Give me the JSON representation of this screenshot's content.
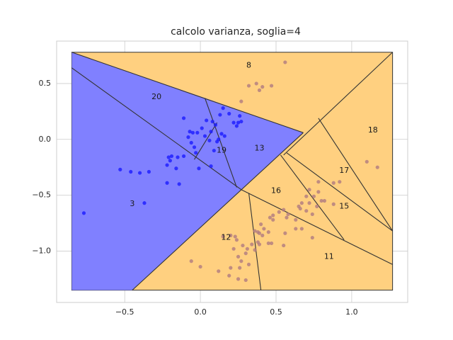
{
  "chart_data": {
    "type": "scatter",
    "title": "calcolo varianza, soglia=4",
    "xlabel": "",
    "ylabel": "",
    "xlim": [
      -0.95,
      1.37
    ],
    "ylim": [
      -1.46,
      0.88
    ],
    "xticks": [
      -0.5,
      0.0,
      0.5,
      1.0
    ],
    "xtick_labels": [
      "−0.5",
      "0.0",
      "0.5",
      "1.0"
    ],
    "yticks": [
      0.5,
      0.0,
      -0.5,
      -1.0
    ],
    "ytick_labels": [
      "0.5",
      "0.0",
      "−0.5",
      "−1.0"
    ],
    "grid": true,
    "colors": {
      "class_a_region": "#8080ff",
      "class_b_region": "#ffd080",
      "class_a_point": "#1a1aff",
      "class_b_point": "#b07a80",
      "line": "#333333",
      "grid": "#cccccc"
    },
    "bounds": {
      "x": [
        -0.85,
        1.27
      ],
      "y": [
        -1.35,
        0.78
      ]
    },
    "regions_a": [
      [
        [
          -0.85,
          0.78
        ],
        [
          -0.85,
          -1.35
        ],
        [
          -0.45,
          -1.35
        ],
        [
          0.27,
          -0.45
        ],
        [
          0.68,
          0.06
        ],
        [
          0.03,
          0.37
        ]
      ]
    ],
    "lines": [
      [
        [
          -0.85,
          0.78
        ],
        [
          0.68,
          0.06
        ]
      ],
      [
        [
          -0.85,
          0.64
        ],
        [
          0.27,
          -0.45
        ]
      ],
      [
        [
          0.03,
          0.37
        ],
        [
          0.24,
          -0.43
        ]
      ],
      [
        [
          0.11,
          0.15
        ],
        [
          -0.04,
          -0.18
        ]
      ],
      [
        [
          -0.45,
          -1.35
        ],
        [
          0.68,
          0.06
        ]
      ],
      [
        [
          0.55,
          -0.14
        ],
        [
          1.27,
          0.78
        ]
      ],
      [
        [
          0.27,
          -0.45
        ],
        [
          1.27,
          -1.12
        ]
      ],
      [
        [
          0.32,
          -0.48
        ],
        [
          0.4,
          -1.35
        ]
      ],
      [
        [
          0.53,
          -0.14
        ],
        [
          0.95,
          -0.9
        ]
      ],
      [
        [
          0.78,
          0.19
        ],
        [
          1.27,
          -0.82
        ]
      ],
      [
        [
          0.57,
          -0.12
        ],
        [
          1.27,
          -0.82
        ]
      ]
    ],
    "region_labels": [
      {
        "text": "8",
        "x": 0.32,
        "y": 0.66
      },
      {
        "text": "20",
        "x": -0.29,
        "y": 0.38
      },
      {
        "text": "19",
        "x": 0.14,
        "y": -0.1
      },
      {
        "text": "13",
        "x": 0.39,
        "y": -0.08
      },
      {
        "text": "18",
        "x": 1.14,
        "y": 0.08
      },
      {
        "text": "17",
        "x": 0.95,
        "y": -0.28
      },
      {
        "text": "16",
        "x": 0.5,
        "y": -0.46
      },
      {
        "text": "15",
        "x": 0.95,
        "y": -0.6
      },
      {
        "text": "3",
        "x": -0.45,
        "y": -0.58
      },
      {
        "text": "12",
        "x": 0.17,
        "y": -0.88
      },
      {
        "text": "11",
        "x": 0.85,
        "y": -1.05
      }
    ],
    "series": [
      {
        "points": [
          [
            -0.77,
            -0.66
          ],
          [
            -0.53,
            -0.27
          ],
          [
            -0.46,
            -0.29
          ],
          [
            -0.4,
            -0.3
          ],
          [
            -0.34,
            -0.29
          ],
          [
            -0.37,
            -0.57
          ],
          [
            -0.22,
            -0.23
          ],
          [
            -0.21,
            -0.16
          ],
          [
            -0.19,
            -0.15
          ],
          [
            -0.2,
            -0.19
          ],
          [
            -0.16,
            -0.26
          ],
          [
            -0.15,
            -0.16
          ],
          [
            -0.14,
            -0.4
          ],
          [
            -0.22,
            -0.39
          ],
          [
            -0.11,
            -0.15
          ],
          [
            -0.08,
            0.02
          ],
          [
            -0.07,
            0.07
          ],
          [
            -0.05,
            0.06
          ],
          [
            -0.06,
            -0.03
          ],
          [
            -0.04,
            -0.07
          ],
          [
            -0.03,
            -0.12
          ],
          [
            -0.02,
            0.06
          ],
          [
            -0.01,
            -0.26
          ],
          [
            0.01,
            0.1
          ],
          [
            0.03,
            0.03
          ],
          [
            0.04,
            0.17
          ],
          [
            0.06,
            -0.01
          ],
          [
            0.07,
            0.07
          ],
          [
            0.08,
            0.16
          ],
          [
            0.1,
            0.13
          ],
          [
            0.11,
            -0.02
          ],
          [
            0.12,
            0.0
          ],
          [
            0.13,
            0.22
          ],
          [
            0.14,
            0.05
          ],
          [
            0.15,
            0.28
          ],
          [
            0.16,
            0.03
          ],
          [
            0.19,
            0.23
          ],
          [
            0.22,
            0.15
          ],
          [
            0.24,
            0.12
          ],
          [
            0.25,
            0.15
          ],
          [
            0.26,
            0.21
          ],
          [
            0.27,
            0.16
          ],
          [
            0.07,
            -0.24
          ],
          [
            0.09,
            -0.1
          ],
          [
            -0.11,
            0.19
          ]
        ]
      },
      {
        "points": [
          [
            0.56,
            0.69
          ],
          [
            0.27,
            0.34
          ],
          [
            0.32,
            0.48
          ],
          [
            0.39,
            0.44
          ],
          [
            0.41,
            0.47
          ],
          [
            0.37,
            0.5
          ],
          [
            0.47,
            0.48
          ],
          [
            1.1,
            -0.2
          ],
          [
            1.17,
            -0.25
          ],
          [
            0.92,
            -0.38
          ],
          [
            0.88,
            -0.39
          ],
          [
            0.78,
            -0.38
          ],
          [
            0.78,
            -0.47
          ],
          [
            0.72,
            -0.45
          ],
          [
            0.75,
            -0.51
          ],
          [
            0.7,
            -0.51
          ],
          [
            0.8,
            -0.55
          ],
          [
            0.82,
            -0.55
          ],
          [
            0.77,
            -0.6
          ],
          [
            0.88,
            -0.58
          ],
          [
            0.72,
            -0.57
          ],
          [
            0.67,
            -0.57
          ],
          [
            0.65,
            -0.6
          ],
          [
            0.66,
            -0.62
          ],
          [
            0.7,
            -0.64
          ],
          [
            0.63,
            -0.72
          ],
          [
            0.74,
            -0.67
          ],
          [
            0.67,
            -0.8
          ],
          [
            0.74,
            -0.88
          ],
          [
            0.58,
            -0.67
          ],
          [
            0.57,
            -0.7
          ],
          [
            0.55,
            -0.63
          ],
          [
            0.52,
            -0.65
          ],
          [
            0.48,
            -0.68
          ],
          [
            0.46,
            -0.7
          ],
          [
            0.48,
            -0.72
          ],
          [
            0.42,
            -0.8
          ],
          [
            0.45,
            -0.83
          ],
          [
            0.41,
            -0.86
          ],
          [
            0.39,
            -0.84
          ],
          [
            0.38,
            -0.83
          ],
          [
            0.36,
            -0.82
          ],
          [
            0.45,
            -0.93
          ],
          [
            0.39,
            -0.94
          ],
          [
            0.38,
            -0.92
          ],
          [
            0.4,
            -0.76
          ],
          [
            0.56,
            -0.84
          ],
          [
            0.55,
            -0.95
          ],
          [
            0.63,
            -0.8
          ],
          [
            0.47,
            -0.93
          ],
          [
            0.2,
            -0.86
          ],
          [
            0.23,
            -0.87
          ],
          [
            0.24,
            -0.9
          ],
          [
            0.28,
            -0.95
          ],
          [
            0.31,
            -0.98
          ],
          [
            0.34,
            -0.94
          ],
          [
            0.36,
            -0.99
          ],
          [
            0.22,
            -0.98
          ],
          [
            0.25,
            -1.05
          ],
          [
            0.3,
            -1.02
          ],
          [
            0.27,
            -1.09
          ],
          [
            0.2,
            -1.15
          ],
          [
            0.26,
            -1.15
          ],
          [
            0.19,
            -1.22
          ],
          [
            0.25,
            -1.25
          ],
          [
            0.3,
            -1.26
          ],
          [
            0.12,
            -1.18
          ],
          [
            -0.06,
            -1.09
          ],
          [
            0.0,
            -1.14
          ],
          [
            0.15,
            -0.87
          ],
          [
            0.32,
            -1.12
          ]
        ]
      }
    ]
  }
}
